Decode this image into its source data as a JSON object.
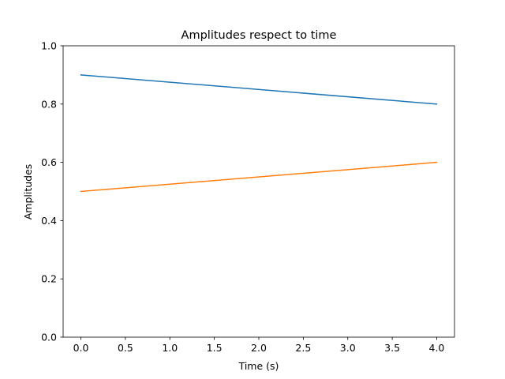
{
  "chart_data": {
    "type": "line",
    "title": "Amplitudes respect to time",
    "xlabel": "Time (s)",
    "ylabel": "Amplitudes",
    "xlim": [
      -0.2,
      4.2
    ],
    "ylim": [
      0.0,
      1.0
    ],
    "xticks": [
      0.0,
      0.5,
      1.0,
      1.5,
      2.0,
      2.5,
      3.0,
      3.5,
      4.0
    ],
    "xtick_labels": [
      "0.0",
      "0.5",
      "1.0",
      "1.5",
      "2.0",
      "2.5",
      "3.0",
      "3.5",
      "4.0"
    ],
    "yticks": [
      0.0,
      0.2,
      0.4,
      0.6,
      0.8,
      1.0
    ],
    "ytick_labels": [
      "0.0",
      "0.2",
      "0.4",
      "0.6",
      "0.8",
      "1.0"
    ],
    "grid": false,
    "legend": "none",
    "x": [
      0,
      4
    ],
    "series": [
      {
        "values": [
          0.9,
          0.8
        ],
        "color": "#1f77b4"
      },
      {
        "values": [
          0.5,
          0.6
        ],
        "color": "#ff7f0e"
      }
    ]
  }
}
